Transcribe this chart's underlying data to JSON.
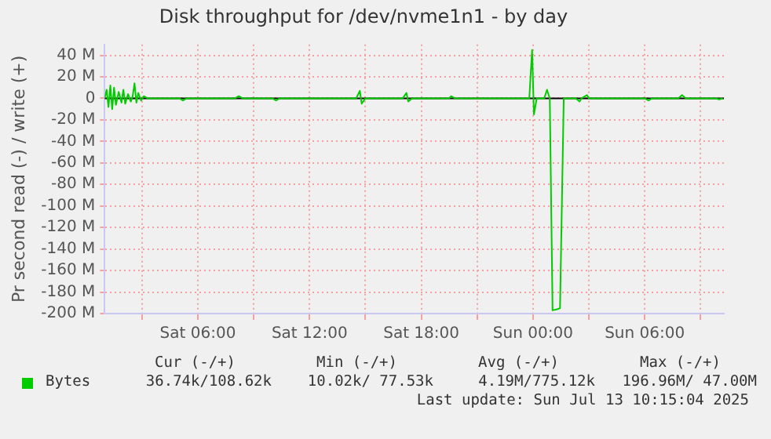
{
  "chart_data": {
    "type": "line",
    "title": "Disk throughput for /dev/nvme1n1 - by day",
    "ylabel": "Pr second read (-) / write (+)",
    "x": [
      "2025-07-12T01:00",
      "2025-07-12T01:06",
      "2025-07-12T01:12",
      "2025-07-12T01:18",
      "2025-07-12T01:24",
      "2025-07-12T01:30",
      "2025-07-12T01:36",
      "2025-07-12T01:45",
      "2025-07-12T01:54",
      "2025-07-12T02:00",
      "2025-07-12T02:06",
      "2025-07-12T02:15",
      "2025-07-12T02:24",
      "2025-07-12T02:30",
      "2025-07-12T02:36",
      "2025-07-12T02:42",
      "2025-07-12T02:48",
      "2025-07-12T02:57",
      "2025-07-12T03:06",
      "2025-07-12T03:18",
      "2025-07-12T05:00",
      "2025-07-12T05:12",
      "2025-07-12T05:24",
      "2025-07-12T08:00",
      "2025-07-12T08:12",
      "2025-07-12T08:24",
      "2025-07-12T10:00",
      "2025-07-12T10:12",
      "2025-07-12T10:24",
      "2025-07-12T14:30",
      "2025-07-12T14:42",
      "2025-07-12T14:48",
      "2025-07-12T15:00",
      "2025-07-12T17:00",
      "2025-07-12T17:12",
      "2025-07-12T17:18",
      "2025-07-12T17:30",
      "2025-07-12T19:30",
      "2025-07-12T19:36",
      "2025-07-12T19:48",
      "2025-07-12T23:48",
      "2025-07-12T23:57",
      "2025-07-13T00:03",
      "2025-07-13T00:12",
      "2025-07-13T00:36",
      "2025-07-13T00:45",
      "2025-07-13T00:54",
      "2025-07-13T01:03",
      "2025-07-13T01:18",
      "2025-07-13T01:27",
      "2025-07-13T01:39",
      "2025-07-13T02:18",
      "2025-07-13T02:30",
      "2025-07-13T02:36",
      "2025-07-13T02:54",
      "2025-07-13T03:00",
      "2025-07-13T06:00",
      "2025-07-13T06:12",
      "2025-07-13T06:24",
      "2025-07-13T07:48",
      "2025-07-13T08:00",
      "2025-07-13T08:12",
      "2025-07-13T09:48",
      "2025-07-13T10:00",
      "2025-07-13T10:12"
    ],
    "series": [
      {
        "name": "Bytes",
        "color": "#00cc00",
        "values": [
          0,
          8,
          -8,
          12,
          -10,
          10,
          -6,
          6,
          -4,
          8,
          -5,
          4,
          -3,
          2,
          14,
          -4,
          5,
          -2,
          2,
          0,
          0,
          -2,
          0,
          0,
          2,
          0,
          0,
          -2,
          0,
          0,
          7,
          -5,
          0,
          0,
          5,
          -3,
          0,
          0,
          2,
          0,
          0,
          45,
          -15,
          0,
          0,
          8,
          0,
          -197,
          -196,
          -195,
          0,
          0,
          -3,
          0,
          3,
          0,
          0,
          -2,
          0,
          0,
          3,
          0,
          0,
          -1,
          0
        ]
      }
    ],
    "xlim": [
      "2025-07-12T01:00",
      "2025-07-13T10:15"
    ],
    "xticks": [
      {
        "value": "2025-07-12T03:00",
        "label": null
      },
      {
        "value": "2025-07-12T06:00",
        "label": "Sat 06:00"
      },
      {
        "value": "2025-07-12T09:00",
        "label": null
      },
      {
        "value": "2025-07-12T12:00",
        "label": "Sat 12:00"
      },
      {
        "value": "2025-07-12T15:00",
        "label": null
      },
      {
        "value": "2025-07-12T18:00",
        "label": "Sat 18:00"
      },
      {
        "value": "2025-07-12T21:00",
        "label": null
      },
      {
        "value": "2025-07-13T00:00",
        "label": "Sun 00:00"
      },
      {
        "value": "2025-07-13T03:00",
        "label": null
      },
      {
        "value": "2025-07-13T06:00",
        "label": "Sun 06:00"
      },
      {
        "value": "2025-07-13T09:00",
        "label": null
      }
    ],
    "ylim": [
      -200,
      50
    ],
    "yticks": [
      {
        "value": -200,
        "label": "-200 M"
      },
      {
        "value": -180,
        "label": "-180 M"
      },
      {
        "value": -160,
        "label": "-160 M"
      },
      {
        "value": -140,
        "label": "-140 M"
      },
      {
        "value": -120,
        "label": "-120 M"
      },
      {
        "value": -100,
        "label": "-100 M"
      },
      {
        "value": -80,
        "label": "-80 M"
      },
      {
        "value": -60,
        "label": "-60 M"
      },
      {
        "value": -40,
        "label": "-40 M"
      },
      {
        "value": -20,
        "label": "-20 M"
      },
      {
        "value": 0,
        "label": "0"
      },
      {
        "value": 20,
        "label": "20 M"
      },
      {
        "value": 40,
        "label": "40 M"
      }
    ],
    "ref_lines": [
      {
        "axis": "y",
        "value": 0,
        "color": "#000000"
      }
    ],
    "grid": true,
    "legend": "bottom",
    "marker": "none",
    "line_style": "solid",
    "annotations": [
      "Cur (-/+)",
      "Min (-/+)",
      "Avg (-/+)",
      "Max (-/+)",
      "36.74k/108.62k",
      "10.02k/ 77.53k",
      "4.19M/775.12k",
      "196.96M/ 47.00M",
      "Last update: Sun Jul 13 10:15:04 2025"
    ]
  }
}
